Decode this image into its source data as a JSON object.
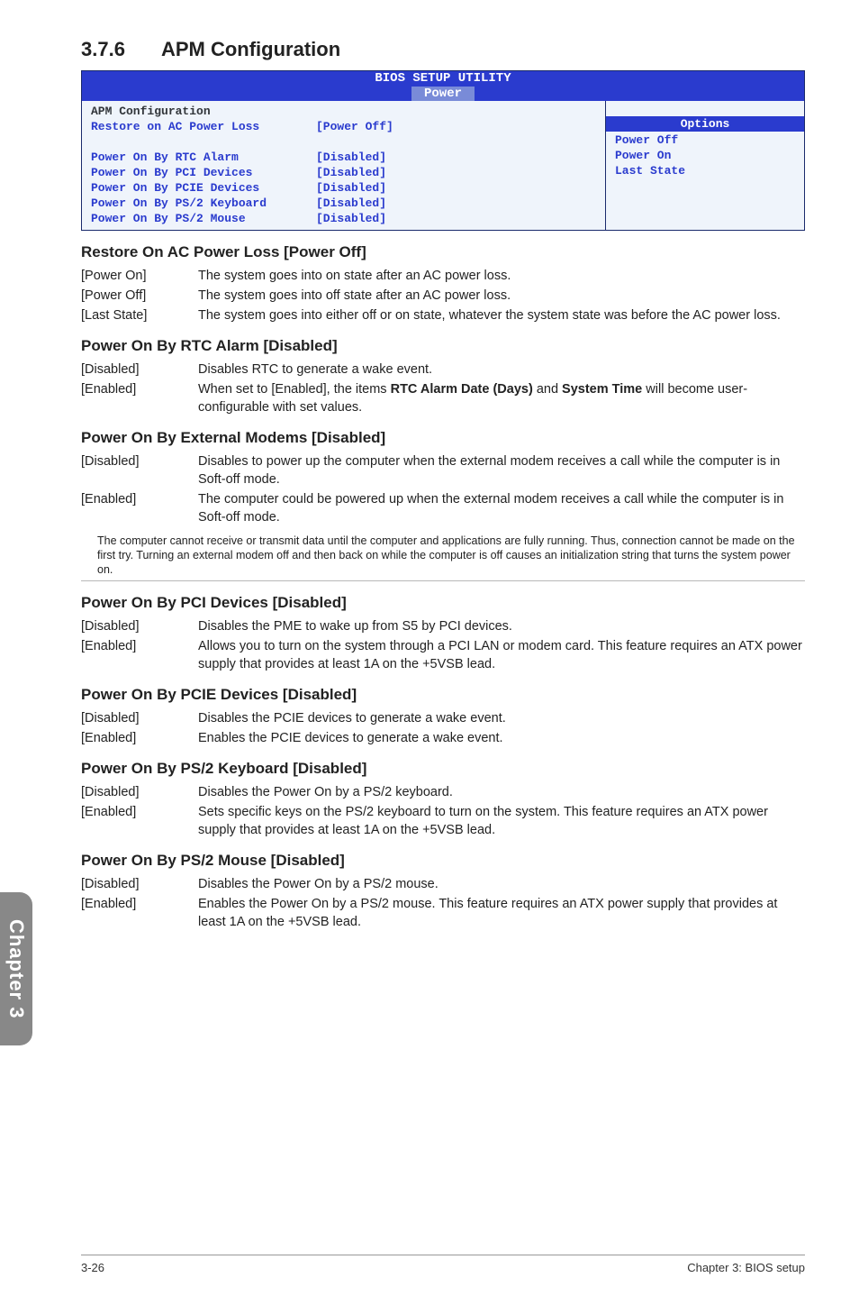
{
  "section": {
    "number": "3.7.6",
    "title": "APM Configuration"
  },
  "sidebar": {
    "label": "Chapter 3"
  },
  "bios": {
    "title": "BIOS SETUP UTILITY",
    "tab": "Power",
    "group_header": "APM Configuration",
    "rows": [
      {
        "k": "Restore on AC Power Loss",
        "v": "[Power Off]"
      },
      {
        "k": "",
        "v": ""
      },
      {
        "k": "Power On By RTC Alarm",
        "v": "[Disabled]"
      },
      {
        "k": "Power On By PCI Devices",
        "v": "[Disabled]"
      },
      {
        "k": "Power On By PCIE Devices",
        "v": "[Disabled]"
      },
      {
        "k": "Power On By PS/2 Keyboard",
        "v": "[Disabled]"
      },
      {
        "k": "Power On By PS/2 Mouse",
        "v": "[Disabled]"
      }
    ],
    "options": {
      "header": "Options",
      "items": [
        "Power Off",
        "Power On",
        "Last State"
      ]
    },
    "colors": {
      "header_bg": "#2a3bce",
      "tab_bg": "#798bd8",
      "body_bg": "#eff4fb",
      "body_fg": "#2a3bce",
      "group_fg": "#31353a"
    }
  },
  "subsections": [
    {
      "title": "Restore On AC Power Loss [Power Off]",
      "items": [
        {
          "k": "[Power On]",
          "v": "The system goes into on state after an AC power loss."
        },
        {
          "k": "[Power Off]",
          "v": "The system goes into off state after an AC power loss."
        },
        {
          "k": "[Last State]",
          "v": "The system goes into either off or on state, whatever the system state was before the AC power loss."
        }
      ]
    },
    {
      "title": "Power On By RTC Alarm [Disabled]",
      "items": [
        {
          "k": "[Disabled]",
          "v": "Disables RTC to generate a wake event."
        },
        {
          "k": "[Enabled]",
          "v": "When set to [Enabled], the items <b>RTC Alarm Date (Days)</b> and <b>System Time</b> will become user-configurable with set values."
        }
      ]
    },
    {
      "title": "Power On By External Modems [Disabled]",
      "items": [
        {
          "k": "[Disabled]",
          "v": "Disables to power up the computer when the external modem receives a call while the computer is in Soft-off mode."
        },
        {
          "k": "[Enabled]",
          "v": "The computer could be powered up when the external modem receives a call while the computer is in Soft-off mode."
        }
      ],
      "note": "The computer cannot receive or transmit data until the computer and applications are fully running. Thus, connection cannot be made on the first try. Turning an external modem off and then back on while the computer is off causes an initialization string that turns the system power on."
    },
    {
      "title": "Power On By PCI Devices [Disabled]",
      "items": [
        {
          "k": "[Disabled]",
          "v": "Disables the PME to wake up from S5 by PCI devices."
        },
        {
          "k": "[Enabled]",
          "v": "Allows you to turn on the system through a PCI LAN or modem card. This feature requires an ATX power supply that provides at least 1A on the +5VSB lead."
        }
      ]
    },
    {
      "title": "Power On By PCIE Devices [Disabled]",
      "items": [
        {
          "k": "[Disabled]",
          "v": "Disables the PCIE devices to generate a wake event."
        },
        {
          "k": "[Enabled]",
          "v": "Enables the PCIE devices to generate a wake event."
        }
      ]
    },
    {
      "title": "Power On By PS/2 Keyboard [Disabled]",
      "items": [
        {
          "k": "[Disabled]",
          "v": "Disables the Power On by a PS/2 keyboard."
        },
        {
          "k": "[Enabled]",
          "v": "Sets specific keys on the PS/2 keyboard to turn on the system. This feature requires an ATX power supply that provides at least 1A on the +5VSB lead."
        }
      ]
    },
    {
      "title": "Power On By PS/2 Mouse [Disabled]",
      "items": [
        {
          "k": "[Disabled]",
          "v": "Disables the Power On by a PS/2 mouse."
        },
        {
          "k": "[Enabled]",
          "v": "Enables the Power On by a PS/2 mouse. This feature requires an ATX power supply that provides at least 1A on the +5VSB lead."
        }
      ]
    }
  ],
  "footer": {
    "left": "3-26",
    "right": "Chapter 3: BIOS setup"
  }
}
